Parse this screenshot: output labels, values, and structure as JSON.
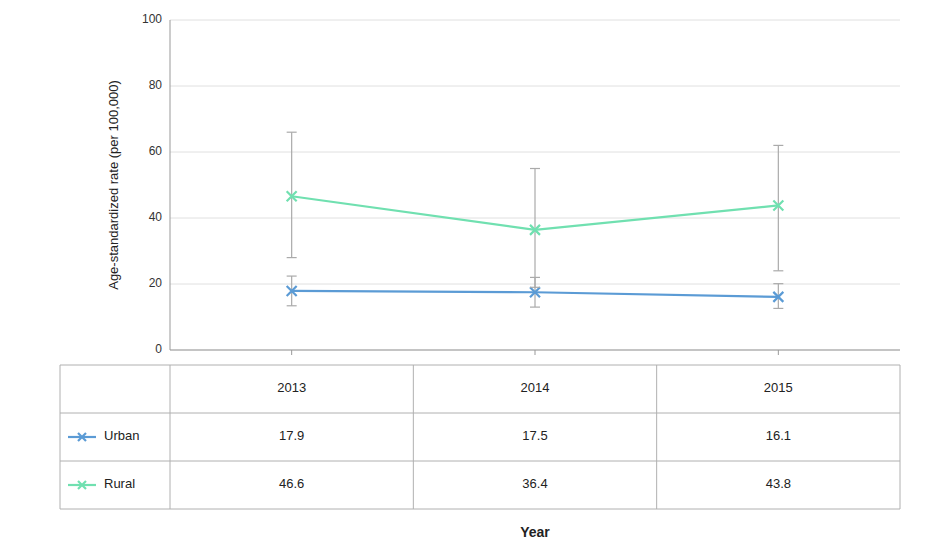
{
  "chart_data": {
    "type": "line",
    "x_label": "Year",
    "y_label": "Age-standardized rate (per 100,000)",
    "x": [
      2013,
      2014,
      2015
    ],
    "xlim": [
      2012.5,
      2015.5
    ],
    "xticks": [
      2013,
      2014,
      2015
    ],
    "ylim": [
      0,
      100
    ],
    "yticks": [
      0,
      20,
      40,
      60,
      80,
      100
    ],
    "grid": true,
    "tick_labels": "y",
    "series": [
      {
        "name": "Urban",
        "color": "#5b9bd5",
        "marker": "x",
        "line_style": "solid",
        "values": [
          17.9,
          17.5,
          16.1
        ],
        "error_lower": [
          4.5,
          4.5,
          3.5
        ],
        "error_upper": [
          4.5,
          4.5,
          4.0
        ]
      },
      {
        "name": "Rural",
        "color": "#70e0b0",
        "marker": "x",
        "line_style": "solid",
        "values": [
          46.6,
          36.4,
          43.8
        ],
        "error_lower": [
          18.6,
          17.4,
          19.8
        ],
        "error_upper": [
          19.4,
          18.6,
          18.2
        ]
      }
    ]
  }
}
